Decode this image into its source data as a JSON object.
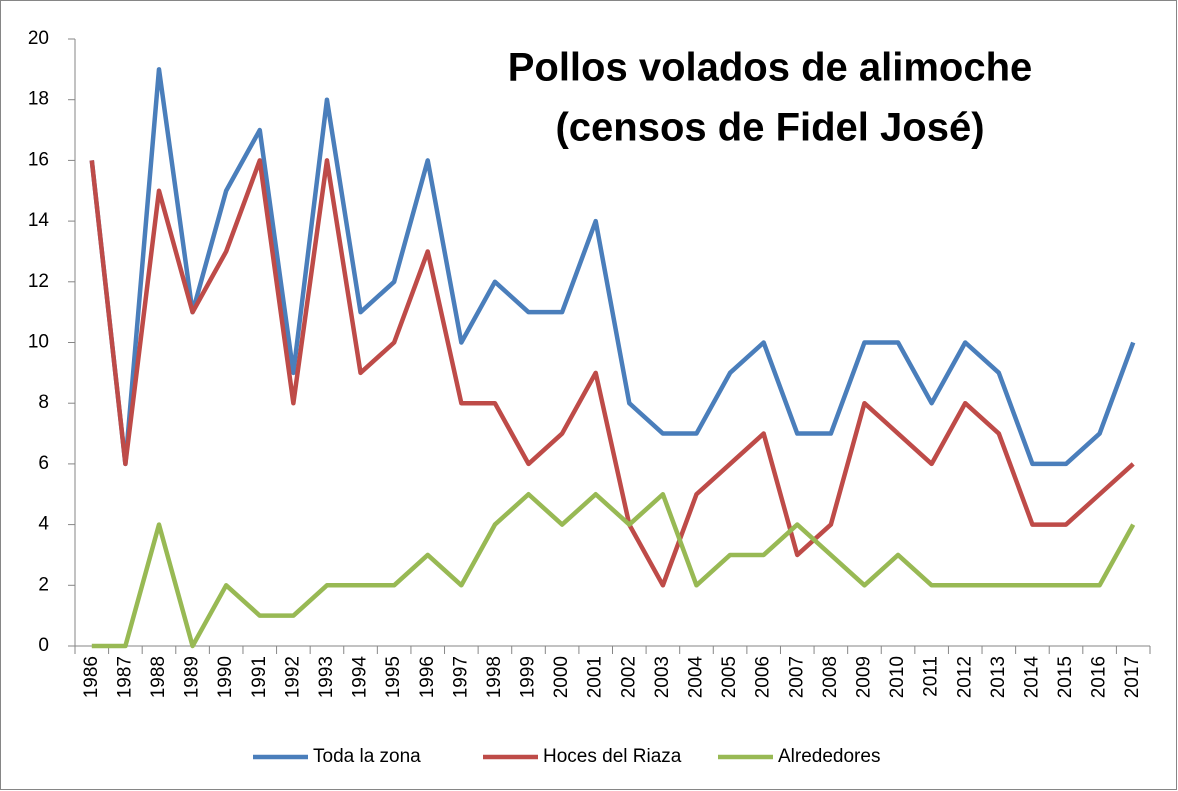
{
  "chart_data": {
    "type": "line",
    "title_lines": [
      "Pollos volados de alimoche",
      "(censos de Fidel José)"
    ],
    "categories": [
      "1986",
      "1987",
      "1988",
      "1989",
      "1990",
      "1991",
      "1992",
      "1993",
      "1994",
      "1995",
      "1996",
      "1997",
      "1998",
      "1999",
      "2000",
      "2001",
      "2002",
      "2003",
      "2004",
      "2005",
      "2006",
      "2007",
      "2008",
      "2009",
      "2010",
      "2011",
      "2012",
      "2013",
      "2014",
      "2015",
      "2016",
      "2017"
    ],
    "series": [
      {
        "name": "Toda la zona",
        "color": "#4a7ebb",
        "values": [
          16,
          6,
          19,
          11,
          15,
          17,
          9,
          18,
          11,
          12,
          16,
          10,
          12,
          11,
          11,
          14,
          8,
          7,
          7,
          9,
          10,
          7,
          7,
          10,
          10,
          8,
          10,
          9,
          6,
          6,
          7,
          10
        ]
      },
      {
        "name": "Hoces del Riaza",
        "color": "#be4b48",
        "values": [
          16,
          6,
          15,
          11,
          13,
          16,
          8,
          16,
          9,
          10,
          13,
          8,
          8,
          6,
          7,
          9,
          4,
          2,
          5,
          6,
          7,
          3,
          4,
          8,
          7,
          6,
          8,
          7,
          4,
          4,
          5,
          6
        ]
      },
      {
        "name": "Alrededores",
        "color": "#98b954",
        "values": [
          0,
          0,
          4,
          0,
          2,
          1,
          1,
          2,
          2,
          2,
          3,
          2,
          4,
          5,
          4,
          5,
          4,
          5,
          2,
          3,
          3,
          4,
          3,
          2,
          3,
          2,
          2,
          2,
          2,
          2,
          2,
          4
        ]
      }
    ],
    "ylim": [
      0,
      20
    ],
    "yticks": [
      0,
      2,
      4,
      6,
      8,
      10,
      12,
      14,
      16,
      18,
      20
    ],
    "grid": false,
    "legend": "bottom"
  }
}
